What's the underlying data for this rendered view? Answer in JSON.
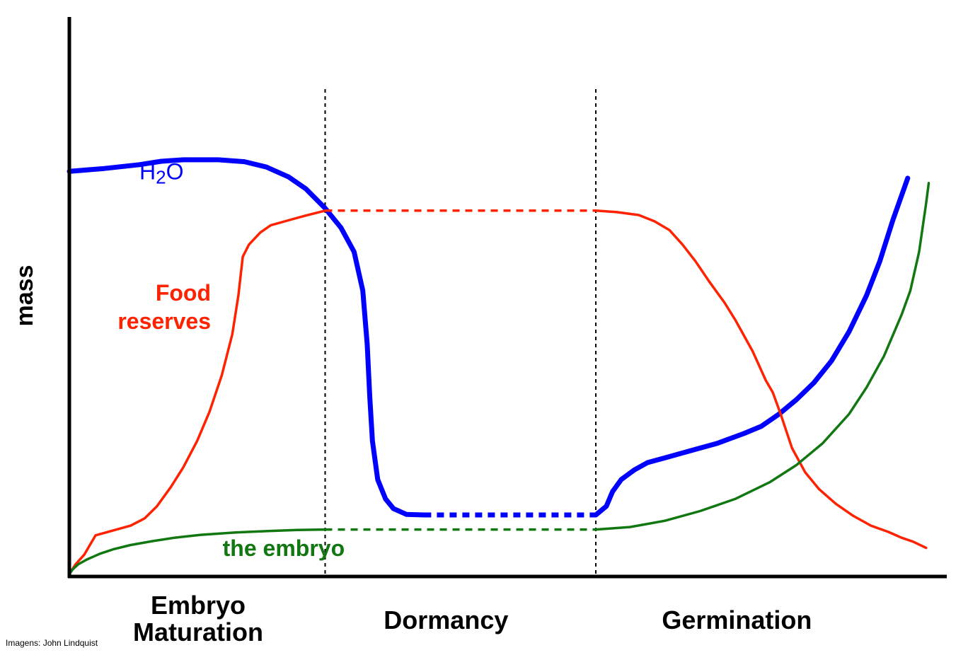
{
  "chart_data": {
    "type": "line",
    "title": "",
    "xlabel": "",
    "ylabel": "mass",
    "xlim": [
      0,
      100
    ],
    "ylim": [
      0,
      100
    ],
    "grid": false,
    "phases": [
      {
        "lines": [
          "Embryo",
          "Maturation"
        ],
        "x_center": 14.7
      },
      {
        "lines": [
          "Dormancy"
        ],
        "x_center": 43.0
      },
      {
        "lines": [
          "Germination"
        ],
        "x_center": 76.2
      }
    ],
    "phase_boundaries": [
      29.2,
      60.1
    ],
    "series": [
      {
        "name": "H2O",
        "label_main": "H",
        "label_sub": "2",
        "label_end": "O",
        "color": "#0000ff",
        "segments": [
          {
            "style": "solid",
            "points": [
              [
                0,
                83.6
              ],
              [
                4,
                84.2
              ],
              [
                8,
                85.0
              ],
              [
                10.5,
                85.7
              ],
              [
                13,
                86.0
              ],
              [
                17,
                86.0
              ],
              [
                20,
                85.6
              ],
              [
                22.5,
                84.5
              ],
              [
                25,
                82.5
              ],
              [
                27,
                80.0
              ],
              [
                29.2,
                76.0
              ],
              [
                31,
                72.0
              ],
              [
                32.5,
                67.0
              ],
              [
                33.5,
                59.0
              ],
              [
                34,
                48.0
              ],
              [
                34.3,
                37.0
              ],
              [
                34.6,
                28.0
              ],
              [
                35.2,
                20.0
              ],
              [
                36.1,
                16.0
              ],
              [
                37,
                14.0
              ],
              [
                38.5,
                12.8
              ],
              [
                40.5,
                12.7
              ]
            ]
          },
          {
            "style": "dashed",
            "points": [
              [
                40.5,
                12.7
              ],
              [
                60.1,
                12.7
              ]
            ]
          },
          {
            "style": "solid",
            "points": [
              [
                60.1,
                12.7
              ],
              [
                61.3,
                14.5
              ],
              [
                62,
                17.5
              ],
              [
                63,
                20.0
              ],
              [
                64.5,
                22.0
              ],
              [
                66,
                23.5
              ],
              [
                68,
                24.5
              ],
              [
                71,
                26.0
              ],
              [
                74,
                27.5
              ],
              [
                77,
                29.5
              ],
              [
                79,
                31.0
              ],
              [
                81,
                33.5
              ],
              [
                83,
                36.5
              ],
              [
                85,
                40.0
              ],
              [
                87,
                44.5
              ],
              [
                89,
                50.5
              ],
              [
                91,
                58.0
              ],
              [
                92.5,
                65.0
              ],
              [
                94,
                73.5
              ],
              [
                95.7,
                82.2
              ]
            ]
          }
        ],
        "label_at": [
          8.0,
          82.0
        ]
      },
      {
        "name": "Food reserves",
        "label_lines": [
          "Food",
          "reserves"
        ],
        "color": "#ff2200",
        "segments": [
          {
            "style": "solid",
            "points": [
              [
                0,
                0.5
              ],
              [
                0.7,
                2.5
              ],
              [
                1.7,
                4.5
              ],
              [
                3,
                8.5
              ],
              [
                5,
                9.5
              ],
              [
                7,
                10.5
              ],
              [
                8.6,
                12.0
              ],
              [
                10,
                14.5
              ],
              [
                11.6,
                18.5
              ],
              [
                13,
                22.5
              ],
              [
                14.6,
                28.0
              ],
              [
                16,
                34.0
              ],
              [
                17.4,
                41.5
              ],
              [
                18.6,
                50.0
              ],
              [
                19.3,
                58.0
              ],
              [
                19.8,
                66.0
              ],
              [
                20.5,
                68.5
              ],
              [
                21.8,
                71.0
              ],
              [
                23,
                72.5
              ],
              [
                25,
                73.5
              ],
              [
                27,
                74.5
              ],
              [
                29.2,
                75.5
              ]
            ]
          },
          {
            "style": "dashed",
            "points": [
              [
                29.2,
                75.5
              ],
              [
                60.1,
                75.5
              ]
            ]
          },
          {
            "style": "solid",
            "points": [
              [
                60.1,
                75.5
              ],
              [
                62.5,
                75.2
              ],
              [
                65,
                74.6
              ],
              [
                66.8,
                73.3
              ],
              [
                68.5,
                71.5
              ],
              [
                70,
                68.5
              ],
              [
                71.5,
                65.0
              ],
              [
                73,
                61.0
              ],
              [
                74.8,
                56.5
              ],
              [
                76,
                53.0
              ],
              [
                78,
                46.5
              ],
              [
                79.5,
                40.5
              ],
              [
                80.3,
                38.0
              ],
              [
                81.2,
                33.5
              ],
              [
                82.5,
                26.5
              ],
              [
                84,
                21.5
              ],
              [
                85.6,
                18.0
              ],
              [
                87.5,
                15.0
              ],
              [
                89.5,
                12.5
              ],
              [
                91.5,
                10.5
              ],
              [
                93.5,
                9.2
              ],
              [
                95,
                8.0
              ],
              [
                96.3,
                7.2
              ],
              [
                97.8,
                5.9
              ]
            ]
          }
        ],
        "label_at": [
          16.5,
          46.0
        ]
      },
      {
        "name": "the embryo",
        "color": "#117711",
        "segments": [
          {
            "style": "solid",
            "points": [
              [
                0,
                0.5
              ],
              [
                0.4,
                1.5
              ],
              [
                1,
                2.5
              ],
              [
                2,
                3.5
              ],
              [
                3.5,
                4.7
              ],
              [
                5,
                5.6
              ],
              [
                7,
                6.5
              ],
              [
                9.5,
                7.3
              ],
              [
                12,
                8.0
              ],
              [
                15,
                8.6
              ],
              [
                19,
                9.1
              ],
              [
                23,
                9.4
              ],
              [
                26,
                9.6
              ],
              [
                29.2,
                9.7
              ]
            ]
          },
          {
            "style": "dashed",
            "points": [
              [
                29.2,
                9.7
              ],
              [
                60.1,
                9.7
              ]
            ]
          },
          {
            "style": "solid",
            "points": [
              [
                60.1,
                9.7
              ],
              [
                64,
                10.2
              ],
              [
                68,
                11.5
              ],
              [
                72,
                13.5
              ],
              [
                76,
                16.0
              ],
              [
                80,
                19.5
              ],
              [
                83,
                23.0
              ],
              [
                86,
                27.5
              ],
              [
                89,
                33.5
              ],
              [
                91,
                39.0
              ],
              [
                93,
                45.5
              ],
              [
                95,
                54.0
              ],
              [
                96,
                59.0
              ],
              [
                97,
                67.0
              ],
              [
                97.8,
                77.0
              ],
              [
                98.1,
                81.2
              ]
            ]
          }
        ],
        "label_at": [
          17.5,
          5.7
        ]
      }
    ]
  },
  "credit": "Imagens: John Lindquist"
}
